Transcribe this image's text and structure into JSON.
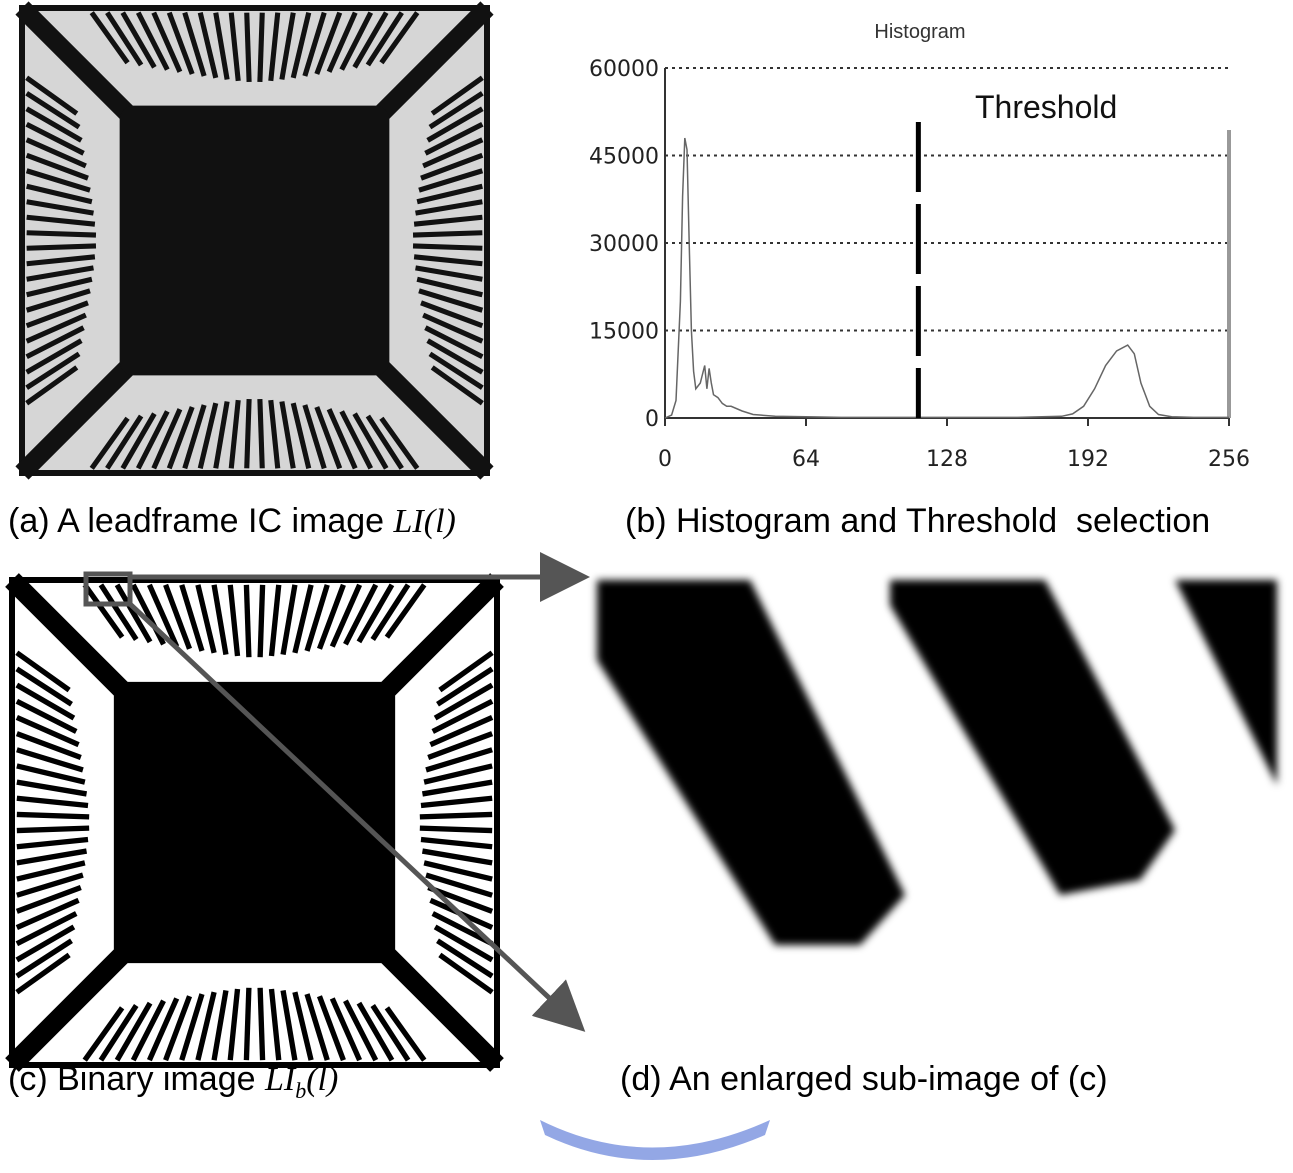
{
  "chart_data": {
    "type": "line",
    "title": "Histogram",
    "annotation": "Threshold",
    "threshold": 115,
    "x": [
      0,
      3,
      5,
      7,
      8,
      9,
      10,
      11,
      12,
      13,
      14,
      16,
      18,
      19,
      20,
      21,
      22,
      24,
      26,
      28,
      30,
      35,
      40,
      50,
      64,
      80,
      100,
      128,
      160,
      180,
      185,
      190,
      195,
      200,
      205,
      210,
      213,
      216,
      220,
      224,
      230,
      240,
      256
    ],
    "values": [
      0,
      500,
      3000,
      20000,
      38000,
      48000,
      46000,
      30000,
      15000,
      8000,
      5000,
      6000,
      9000,
      5000,
      8500,
      6000,
      4000,
      3500,
      2500,
      2000,
      2000,
      1200,
      600,
      300,
      200,
      100,
      100,
      100,
      100,
      300,
      700,
      2000,
      5000,
      9000,
      11500,
      12500,
      11000,
      6000,
      2000,
      600,
      200,
      100,
      100
    ],
    "color": "#666666",
    "xlim": [
      0,
      256
    ],
    "ylim": [
      0,
      60000
    ],
    "xticks": [
      0,
      64,
      128,
      192,
      256
    ],
    "yticks": [
      0,
      15000,
      30000,
      45000,
      60000
    ],
    "grid": true
  },
  "captions": {
    "a": {
      "text": "(a) A leadframe IC image",
      "math": [
        "LI",
        "(l)"
      ]
    },
    "b": {
      "text": "(b) Histogram and Threshold  selection"
    },
    "c": {
      "text": "(c) Binary image",
      "math": [
        "LI",
        "b",
        "(l)"
      ]
    },
    "d": {
      "text": "(d) An enlarged sub-image of (c)"
    }
  }
}
